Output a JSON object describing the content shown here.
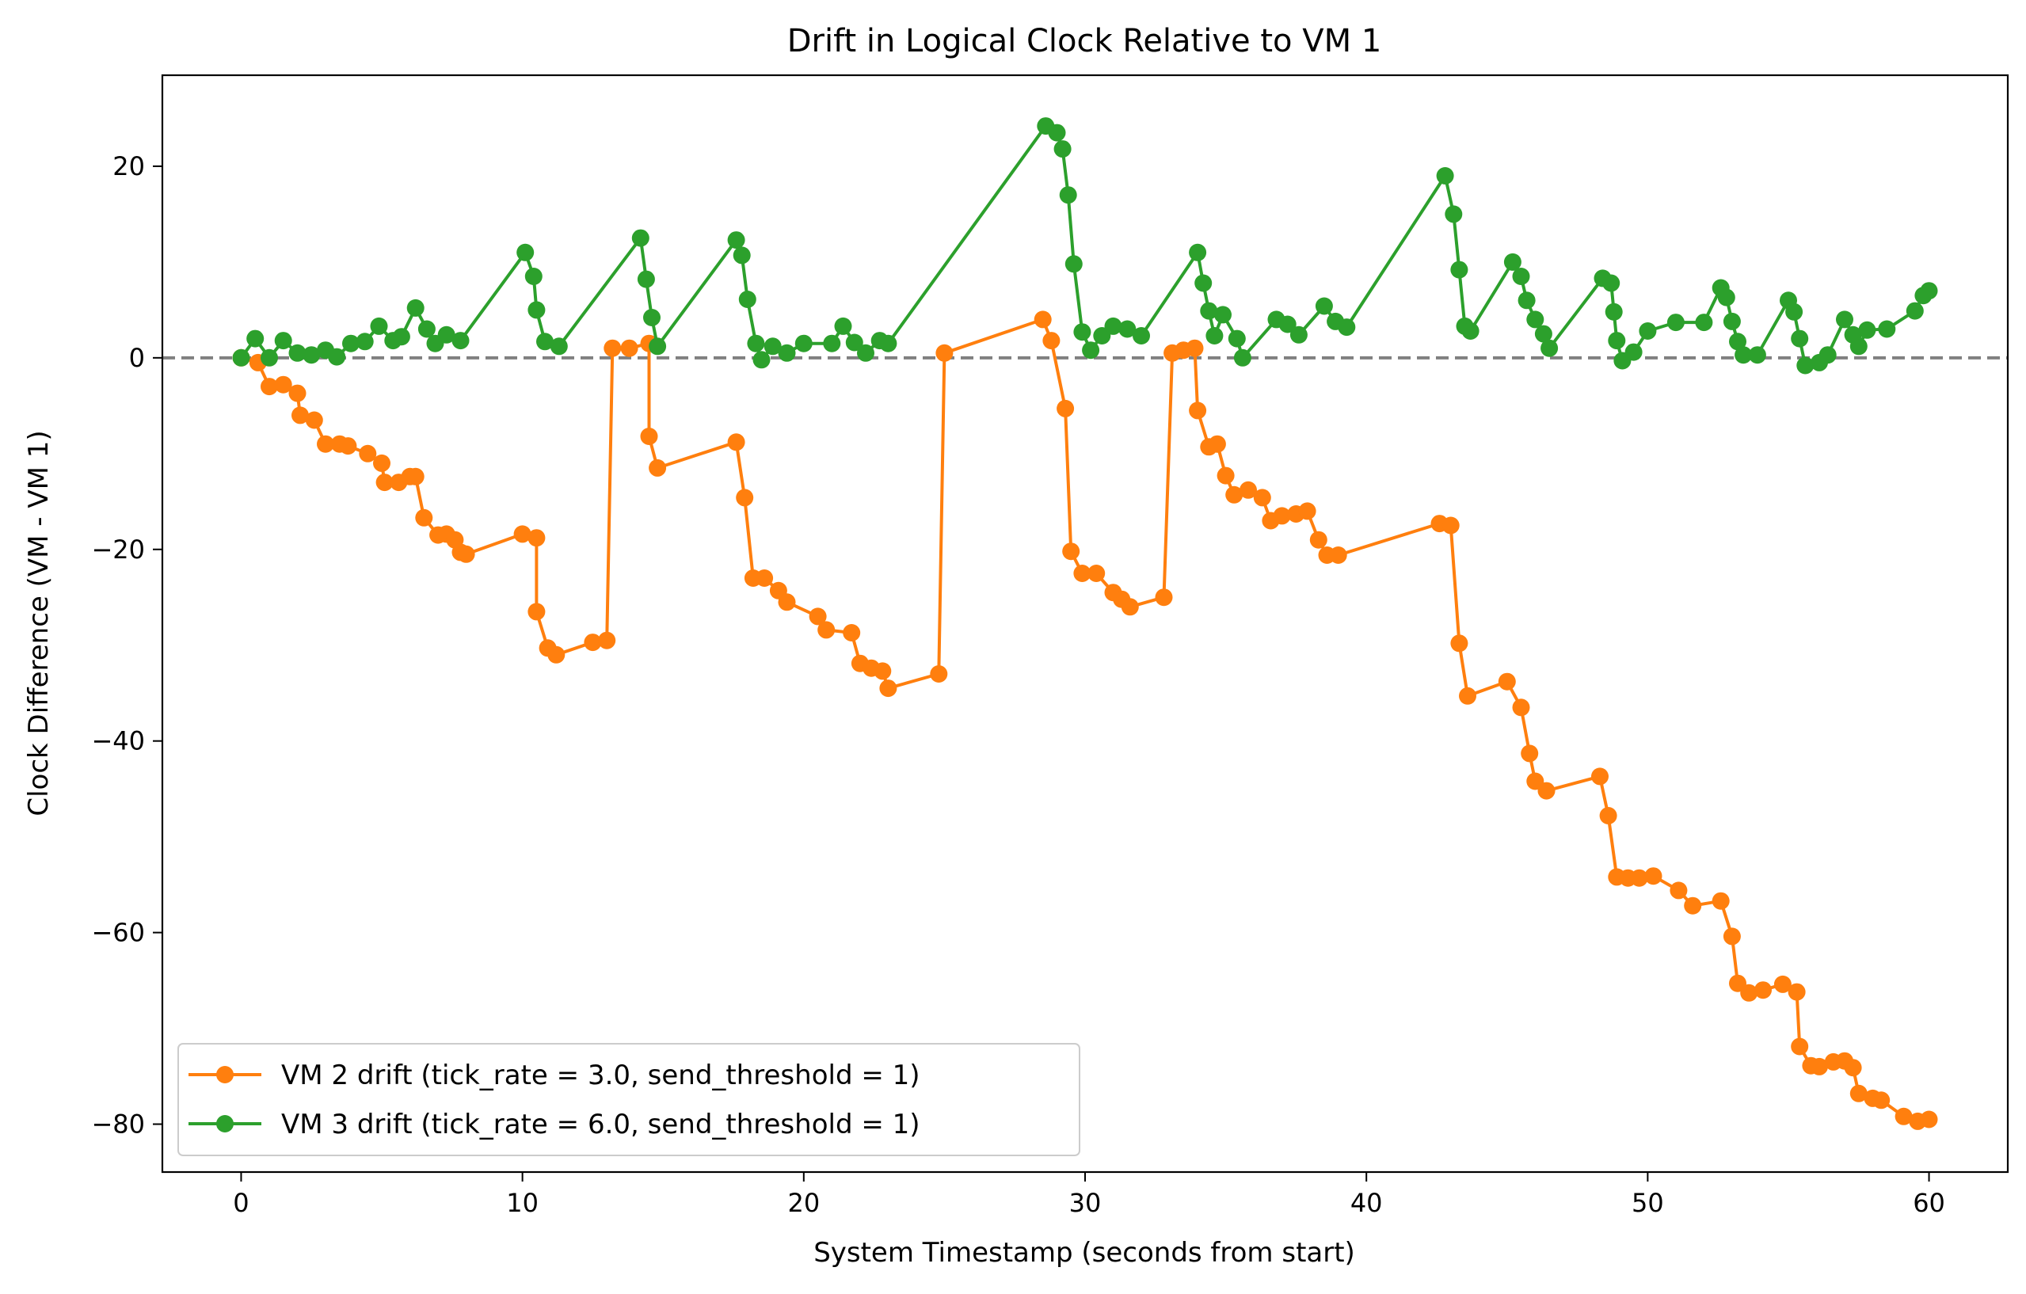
{
  "chart_data": {
    "type": "line",
    "title": "Drift in Logical Clock Relative to VM 1",
    "xlabel": "System Timestamp (seconds from start)",
    "ylabel": "Clock Difference (VM - VM 1)",
    "xlim": [
      -2.8,
      62.8
    ],
    "ylim": [
      -85,
      29.5
    ],
    "xticks": [
      0,
      10,
      20,
      30,
      40,
      50,
      60
    ],
    "yticks": [
      -80,
      -60,
      -40,
      -20,
      0,
      20
    ],
    "xtick_labels": [
      "0",
      "10",
      "20",
      "30",
      "40",
      "50",
      "60"
    ],
    "ytick_labels": [
      "−80",
      "−60",
      "−40",
      "−20",
      "0",
      "20"
    ],
    "reference_line": {
      "y": 0,
      "style": "dashed",
      "color": "#808080"
    },
    "legend_position": "lower-left",
    "grid": false,
    "series": [
      {
        "name": "VM 2 drift (tick_rate = 3.0, send_threshold = 1)",
        "color": "#ff7f0e",
        "marker": "circle",
        "points": [
          [
            0,
            0
          ],
          [
            0.6,
            -0.5
          ],
          [
            1.0,
            -3
          ],
          [
            1.5,
            -2.8
          ],
          [
            2.0,
            -3.7
          ],
          [
            2.1,
            -6
          ],
          [
            2.6,
            -6.5
          ],
          [
            3.0,
            -9
          ],
          [
            3.5,
            -9
          ],
          [
            3.8,
            -9.2
          ],
          [
            4.5,
            -10
          ],
          [
            5.0,
            -11
          ],
          [
            5.1,
            -13
          ],
          [
            5.6,
            -13
          ],
          [
            6.0,
            -12.4
          ],
          [
            6.2,
            -12.4
          ],
          [
            6.5,
            -16.7
          ],
          [
            7.0,
            -18.5
          ],
          [
            7.3,
            -18.4
          ],
          [
            7.6,
            -19
          ],
          [
            7.8,
            -20.3
          ],
          [
            8.0,
            -20.5
          ],
          [
            10.0,
            -18.4
          ],
          [
            10.5,
            -18.8
          ],
          [
            10.5,
            -26.5
          ],
          [
            10.9,
            -30.3
          ],
          [
            11.2,
            -31
          ],
          [
            12.5,
            -29.7
          ],
          [
            13.0,
            -29.5
          ],
          [
            13.2,
            1
          ],
          [
            13.8,
            1
          ],
          [
            14.5,
            1.5
          ],
          [
            14.5,
            -8.2
          ],
          [
            14.8,
            -11.5
          ],
          [
            17.6,
            -8.8
          ],
          [
            17.9,
            -14.6
          ],
          [
            18.2,
            -23
          ],
          [
            18.6,
            -23
          ],
          [
            19.1,
            -24.3
          ],
          [
            19.4,
            -25.5
          ],
          [
            20.5,
            -27
          ],
          [
            20.8,
            -28.4
          ],
          [
            21.7,
            -28.7
          ],
          [
            22.0,
            -31.9
          ],
          [
            22.4,
            -32.4
          ],
          [
            22.8,
            -32.7
          ],
          [
            23.0,
            -34.5
          ],
          [
            24.8,
            -33
          ],
          [
            25.0,
            0.5
          ],
          [
            28.5,
            4
          ],
          [
            28.8,
            1.8
          ],
          [
            29.3,
            -5.3
          ],
          [
            29.5,
            -20.2
          ],
          [
            29.9,
            -22.5
          ],
          [
            30.4,
            -22.5
          ],
          [
            31.0,
            -24.5
          ],
          [
            31.3,
            -25.2
          ],
          [
            31.6,
            -26
          ],
          [
            32.8,
            -25
          ],
          [
            33.1,
            0.5
          ],
          [
            33.5,
            0.8
          ],
          [
            33.9,
            1
          ],
          [
            34.0,
            -5.5
          ],
          [
            34.4,
            -9.3
          ],
          [
            34.7,
            -9
          ],
          [
            35.0,
            -12.3
          ],
          [
            35.3,
            -14.3
          ],
          [
            35.8,
            -13.8
          ],
          [
            36.3,
            -14.6
          ],
          [
            36.6,
            -17
          ],
          [
            37.0,
            -16.5
          ],
          [
            37.5,
            -16.3
          ],
          [
            37.9,
            -16
          ],
          [
            38.3,
            -19
          ],
          [
            38.6,
            -20.6
          ],
          [
            39.0,
            -20.6
          ],
          [
            42.6,
            -17.3
          ],
          [
            43.0,
            -17.5
          ],
          [
            43.3,
            -29.8
          ],
          [
            43.6,
            -35.3
          ],
          [
            45.0,
            -33.8
          ],
          [
            45.5,
            -36.5
          ],
          [
            45.8,
            -41.3
          ],
          [
            46.0,
            -44.2
          ],
          [
            46.4,
            -45.2
          ],
          [
            48.3,
            -43.7
          ],
          [
            48.6,
            -47.8
          ],
          [
            48.9,
            -54.2
          ],
          [
            49.3,
            -54.3
          ],
          [
            49.7,
            -54.3
          ],
          [
            50.2,
            -54.1
          ],
          [
            51.1,
            -55.6
          ],
          [
            51.6,
            -57.2
          ],
          [
            52.6,
            -56.7
          ],
          [
            53.0,
            -60.4
          ],
          [
            53.2,
            -65.3
          ],
          [
            53.6,
            -66.3
          ],
          [
            54.1,
            -66
          ],
          [
            54.8,
            -65.4
          ],
          [
            55.3,
            -66.2
          ],
          [
            55.4,
            -71.9
          ],
          [
            55.8,
            -73.9
          ],
          [
            56.1,
            -74
          ],
          [
            56.6,
            -73.5
          ],
          [
            57.0,
            -73.4
          ],
          [
            57.3,
            -74.1
          ],
          [
            57.5,
            -76.8
          ],
          [
            58.0,
            -77.3
          ],
          [
            58.3,
            -77.5
          ],
          [
            59.1,
            -79.2
          ],
          [
            59.6,
            -79.7
          ],
          [
            60.0,
            -79.5
          ]
        ]
      },
      {
        "name": "VM 3 drift (tick_rate = 6.0, send_threshold = 1)",
        "color": "#2ca02c",
        "marker": "circle",
        "points": [
          [
            0,
            0
          ],
          [
            0.5,
            2
          ],
          [
            1.0,
            0
          ],
          [
            1.5,
            1.8
          ],
          [
            2.0,
            0.5
          ],
          [
            2.5,
            0.3
          ],
          [
            3.0,
            0.8
          ],
          [
            3.4,
            0.1
          ],
          [
            3.9,
            1.5
          ],
          [
            4.4,
            1.7
          ],
          [
            4.9,
            3.3
          ],
          [
            5.4,
            1.8
          ],
          [
            5.7,
            2.2
          ],
          [
            6.2,
            5.2
          ],
          [
            6.6,
            3
          ],
          [
            6.9,
            1.5
          ],
          [
            7.3,
            2.4
          ],
          [
            7.8,
            1.8
          ],
          [
            10.1,
            11
          ],
          [
            10.4,
            8.5
          ],
          [
            10.5,
            5
          ],
          [
            10.8,
            1.7
          ],
          [
            11.3,
            1.2
          ],
          [
            14.2,
            12.5
          ],
          [
            14.4,
            8.2
          ],
          [
            14.6,
            4.2
          ],
          [
            14.8,
            1.2
          ],
          [
            17.6,
            12.3
          ],
          [
            17.8,
            10.7
          ],
          [
            18.0,
            6.1
          ],
          [
            18.3,
            1.5
          ],
          [
            18.5,
            -0.2
          ],
          [
            18.9,
            1.2
          ],
          [
            19.4,
            0.5
          ],
          [
            20.0,
            1.5
          ],
          [
            21.0,
            1.5
          ],
          [
            21.4,
            3.3
          ],
          [
            21.8,
            1.6
          ],
          [
            22.2,
            0.5
          ],
          [
            22.7,
            1.8
          ],
          [
            23.0,
            1.5
          ],
          [
            28.6,
            24.2
          ],
          [
            29.0,
            23.5
          ],
          [
            29.2,
            21.8
          ],
          [
            29.4,
            17
          ],
          [
            29.6,
            9.8
          ],
          [
            29.9,
            2.7
          ],
          [
            30.2,
            0.8
          ],
          [
            30.6,
            2.3
          ],
          [
            31.0,
            3.3
          ],
          [
            31.5,
            3
          ],
          [
            32.0,
            2.3
          ],
          [
            34.0,
            11
          ],
          [
            34.2,
            7.8
          ],
          [
            34.4,
            4.9
          ],
          [
            34.6,
            2.3
          ],
          [
            34.9,
            4.5
          ],
          [
            35.4,
            2
          ],
          [
            35.6,
            0
          ],
          [
            36.8,
            4
          ],
          [
            37.2,
            3.5
          ],
          [
            37.6,
            2.4
          ],
          [
            38.5,
            5.4
          ],
          [
            38.9,
            3.8
          ],
          [
            39.3,
            3.2
          ],
          [
            42.8,
            19
          ],
          [
            43.1,
            15
          ],
          [
            43.3,
            9.2
          ],
          [
            43.5,
            3.3
          ],
          [
            43.7,
            2.8
          ],
          [
            45.2,
            10
          ],
          [
            45.5,
            8.5
          ],
          [
            45.7,
            6
          ],
          [
            46.0,
            4
          ],
          [
            46.3,
            2.5
          ],
          [
            46.5,
            1
          ],
          [
            48.4,
            8.3
          ],
          [
            48.7,
            7.8
          ],
          [
            48.8,
            4.8
          ],
          [
            48.9,
            1.8
          ],
          [
            49.1,
            -0.3
          ],
          [
            49.5,
            0.6
          ],
          [
            50.0,
            2.8
          ],
          [
            51.0,
            3.7
          ],
          [
            52.0,
            3.7
          ],
          [
            52.6,
            7.3
          ],
          [
            52.8,
            6.3
          ],
          [
            53.0,
            3.8
          ],
          [
            53.2,
            1.7
          ],
          [
            53.4,
            0.3
          ],
          [
            53.9,
            0.3
          ],
          [
            55.0,
            6
          ],
          [
            55.2,
            4.8
          ],
          [
            55.4,
            2
          ],
          [
            55.6,
            -0.8
          ],
          [
            56.1,
            -0.5
          ],
          [
            56.4,
            0.3
          ],
          [
            57.0,
            4
          ],
          [
            57.3,
            2.4
          ],
          [
            57.5,
            1.2
          ],
          [
            57.8,
            2.9
          ],
          [
            58.5,
            3
          ],
          [
            59.5,
            4.9
          ],
          [
            59.8,
            6.5
          ],
          [
            60.0,
            7
          ]
        ]
      }
    ]
  }
}
